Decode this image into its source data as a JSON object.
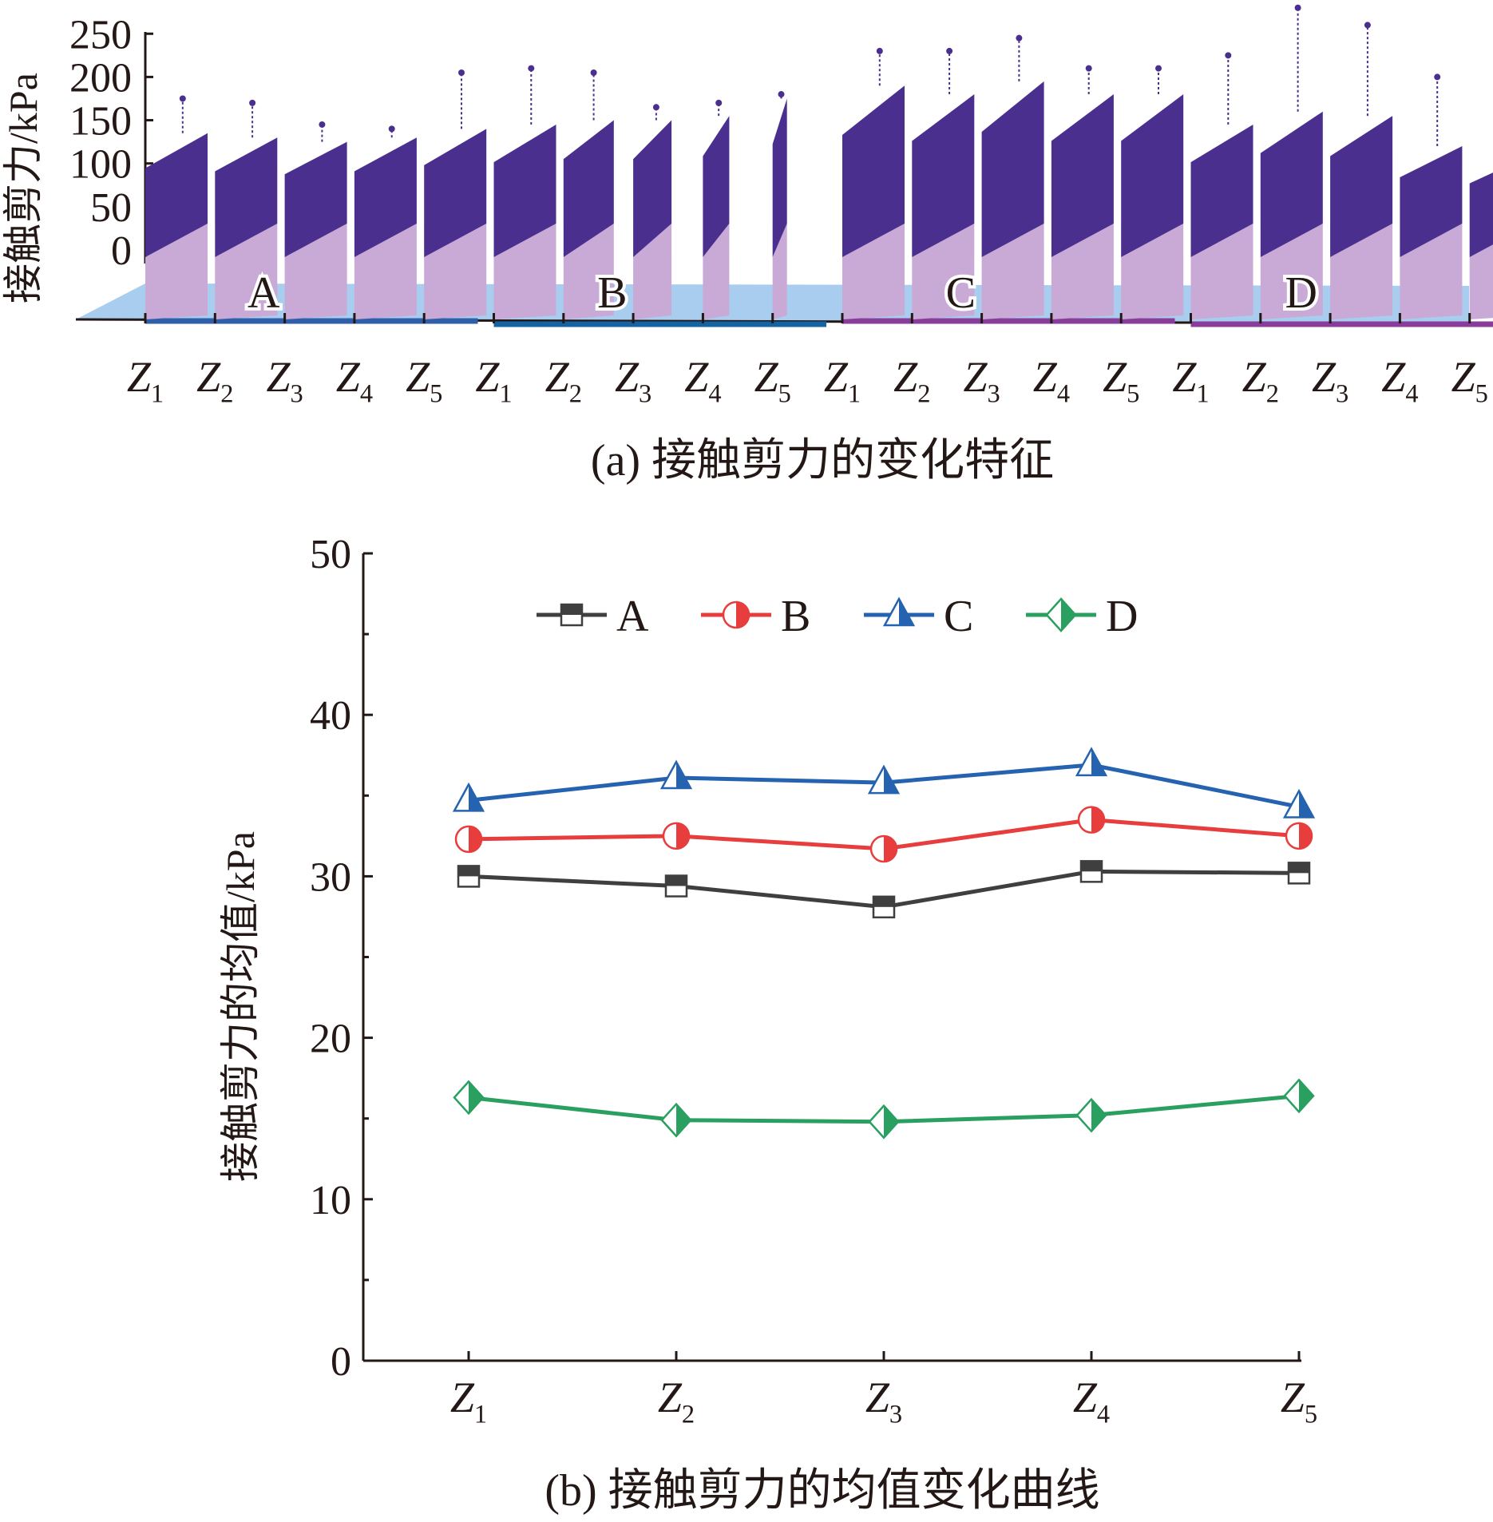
{
  "chart_data": [
    {
      "type": "scatter",
      "title": "(a) 接触剪力的变化特征",
      "ylabel": "接触剪力/kPa",
      "ylim": [
        0,
        250
      ],
      "yticks": [
        "0",
        "50",
        "100",
        "150",
        "200",
        "250"
      ],
      "groups": [
        "A",
        "B",
        "C",
        "D"
      ],
      "xticks": [
        "Z1",
        "Z2",
        "Z3",
        "Z4",
        "Z5"
      ],
      "colors": {
        "points": "#4b2f8f",
        "floor": "#a9cdee",
        "shadow": "#c9a9d6",
        "group_A": "#2f5fa8",
        "group_B": "#1463a3",
        "group_C": "#8a3c9a",
        "group_D": "#8a3c9a"
      },
      "approx_max": [
        [
          175,
          170,
          145,
          140,
          205
        ],
        [
          210,
          205,
          165,
          170,
          180
        ],
        [
          230,
          230,
          245,
          210,
          210
        ],
        [
          225,
          280,
          260,
          200,
          185
        ]
      ],
      "approx_bulk_top": [
        [
          135,
          130,
          125,
          130,
          140
        ],
        [
          145,
          150,
          150,
          155,
          175
        ],
        [
          190,
          180,
          195,
          180,
          180
        ],
        [
          145,
          160,
          155,
          120,
          110
        ]
      ]
    },
    {
      "type": "line",
      "title": "(b) 接触剪力的均值变化曲线",
      "ylabel": "接触剪力的均值/kPa",
      "xlabel": "",
      "categories": [
        "Z1",
        "Z2",
        "Z3",
        "Z4",
        "Z5"
      ],
      "ylim": [
        0,
        50
      ],
      "yticks": [
        "0",
        "10",
        "20",
        "30",
        "40",
        "50"
      ],
      "legend": "top",
      "series": [
        {
          "name": "A",
          "color": "#3f3f3f",
          "marker": "half-filled-square",
          "values": [
            30.0,
            29.4,
            28.1,
            30.3,
            30.2
          ]
        },
        {
          "name": "B",
          "color": "#e83d3d",
          "marker": "half-filled-circle",
          "values": [
            32.3,
            32.5,
            31.7,
            33.5,
            32.5
          ]
        },
        {
          "name": "C",
          "color": "#2563b0",
          "marker": "half-filled-triangle",
          "values": [
            34.7,
            36.1,
            35.8,
            36.9,
            34.3
          ]
        },
        {
          "name": "D",
          "color": "#2aa060",
          "marker": "half-filled-diamond",
          "values": [
            16.3,
            14.9,
            14.8,
            15.2,
            16.4
          ]
        }
      ]
    }
  ]
}
